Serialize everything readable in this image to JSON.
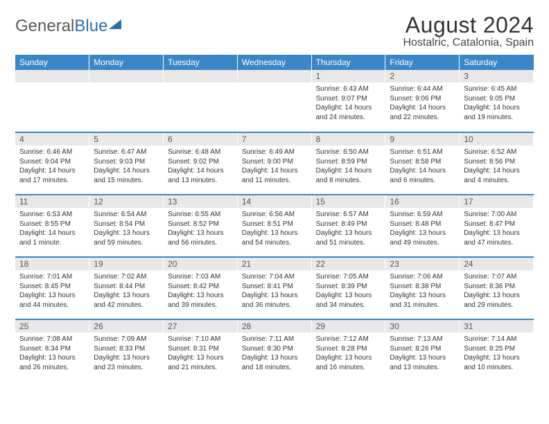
{
  "logo": {
    "text1": "General",
    "text2": "Blue"
  },
  "title": "August 2024",
  "location": "Hostalric, Catalonia, Spain",
  "colors": {
    "header_bg": "#3b86c6",
    "header_fg": "#ffffff",
    "daynum_bg": "#e8e8e8",
    "row_border": "#3b86c6",
    "text": "#333333"
  },
  "day_headers": [
    "Sunday",
    "Monday",
    "Tuesday",
    "Wednesday",
    "Thursday",
    "Friday",
    "Saturday"
  ],
  "weeks": [
    [
      null,
      null,
      null,
      null,
      {
        "n": "1",
        "sunrise": "6:43 AM",
        "sunset": "9:07 PM",
        "daylight": "14 hours and 24 minutes."
      },
      {
        "n": "2",
        "sunrise": "6:44 AM",
        "sunset": "9:06 PM",
        "daylight": "14 hours and 22 minutes."
      },
      {
        "n": "3",
        "sunrise": "6:45 AM",
        "sunset": "9:05 PM",
        "daylight": "14 hours and 19 minutes."
      }
    ],
    [
      {
        "n": "4",
        "sunrise": "6:46 AM",
        "sunset": "9:04 PM",
        "daylight": "14 hours and 17 minutes."
      },
      {
        "n": "5",
        "sunrise": "6:47 AM",
        "sunset": "9:03 PM",
        "daylight": "14 hours and 15 minutes."
      },
      {
        "n": "6",
        "sunrise": "6:48 AM",
        "sunset": "9:02 PM",
        "daylight": "14 hours and 13 minutes."
      },
      {
        "n": "7",
        "sunrise": "6:49 AM",
        "sunset": "9:00 PM",
        "daylight": "14 hours and 11 minutes."
      },
      {
        "n": "8",
        "sunrise": "6:50 AM",
        "sunset": "8:59 PM",
        "daylight": "14 hours and 8 minutes."
      },
      {
        "n": "9",
        "sunrise": "6:51 AM",
        "sunset": "8:58 PM",
        "daylight": "14 hours and 6 minutes."
      },
      {
        "n": "10",
        "sunrise": "6:52 AM",
        "sunset": "8:56 PM",
        "daylight": "14 hours and 4 minutes."
      }
    ],
    [
      {
        "n": "11",
        "sunrise": "6:53 AM",
        "sunset": "8:55 PM",
        "daylight": "14 hours and 1 minute."
      },
      {
        "n": "12",
        "sunrise": "6:54 AM",
        "sunset": "8:54 PM",
        "daylight": "13 hours and 59 minutes."
      },
      {
        "n": "13",
        "sunrise": "6:55 AM",
        "sunset": "8:52 PM",
        "daylight": "13 hours and 56 minutes."
      },
      {
        "n": "14",
        "sunrise": "6:56 AM",
        "sunset": "8:51 PM",
        "daylight": "13 hours and 54 minutes."
      },
      {
        "n": "15",
        "sunrise": "6:57 AM",
        "sunset": "8:49 PM",
        "daylight": "13 hours and 51 minutes."
      },
      {
        "n": "16",
        "sunrise": "6:59 AM",
        "sunset": "8:48 PM",
        "daylight": "13 hours and 49 minutes."
      },
      {
        "n": "17",
        "sunrise": "7:00 AM",
        "sunset": "8:47 PM",
        "daylight": "13 hours and 47 minutes."
      }
    ],
    [
      {
        "n": "18",
        "sunrise": "7:01 AM",
        "sunset": "8:45 PM",
        "daylight": "13 hours and 44 minutes."
      },
      {
        "n": "19",
        "sunrise": "7:02 AM",
        "sunset": "8:44 PM",
        "daylight": "13 hours and 42 minutes."
      },
      {
        "n": "20",
        "sunrise": "7:03 AM",
        "sunset": "8:42 PM",
        "daylight": "13 hours and 39 minutes."
      },
      {
        "n": "21",
        "sunrise": "7:04 AM",
        "sunset": "8:41 PM",
        "daylight": "13 hours and 36 minutes."
      },
      {
        "n": "22",
        "sunrise": "7:05 AM",
        "sunset": "8:39 PM",
        "daylight": "13 hours and 34 minutes."
      },
      {
        "n": "23",
        "sunrise": "7:06 AM",
        "sunset": "8:38 PM",
        "daylight": "13 hours and 31 minutes."
      },
      {
        "n": "24",
        "sunrise": "7:07 AM",
        "sunset": "8:36 PM",
        "daylight": "13 hours and 29 minutes."
      }
    ],
    [
      {
        "n": "25",
        "sunrise": "7:08 AM",
        "sunset": "8:34 PM",
        "daylight": "13 hours and 26 minutes."
      },
      {
        "n": "26",
        "sunrise": "7:09 AM",
        "sunset": "8:33 PM",
        "daylight": "13 hours and 23 minutes."
      },
      {
        "n": "27",
        "sunrise": "7:10 AM",
        "sunset": "8:31 PM",
        "daylight": "13 hours and 21 minutes."
      },
      {
        "n": "28",
        "sunrise": "7:11 AM",
        "sunset": "8:30 PM",
        "daylight": "13 hours and 18 minutes."
      },
      {
        "n": "29",
        "sunrise": "7:12 AM",
        "sunset": "8:28 PM",
        "daylight": "13 hours and 16 minutes."
      },
      {
        "n": "30",
        "sunrise": "7:13 AM",
        "sunset": "8:26 PM",
        "daylight": "13 hours and 13 minutes."
      },
      {
        "n": "31",
        "sunrise": "7:14 AM",
        "sunset": "8:25 PM",
        "daylight": "13 hours and 10 minutes."
      }
    ]
  ],
  "labels": {
    "sunrise": "Sunrise: ",
    "sunset": "Sunset: ",
    "daylight": "Daylight: "
  }
}
